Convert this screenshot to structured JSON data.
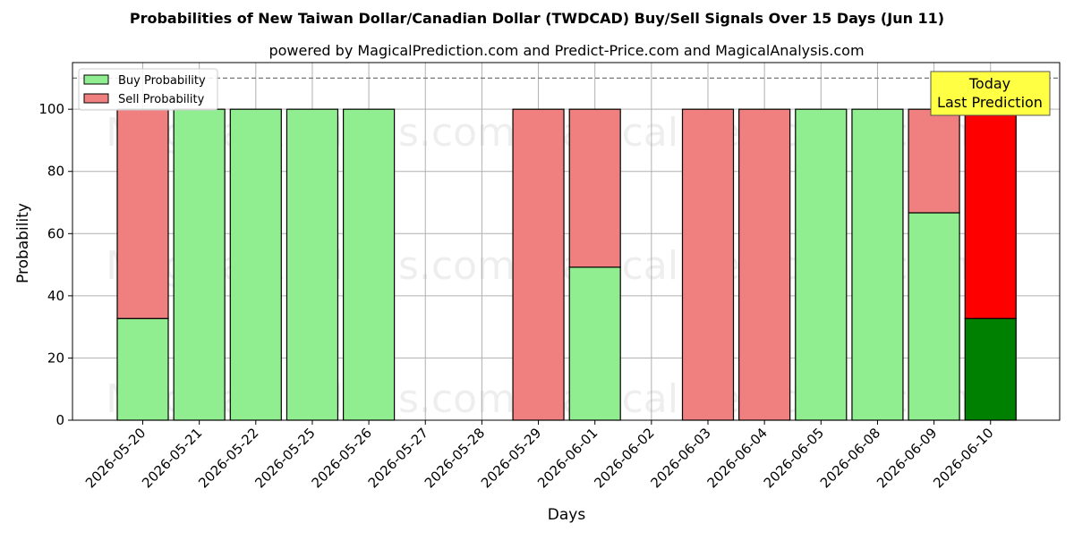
{
  "chart_data": {
    "type": "bar",
    "stacked": true,
    "title": "Probabilities of New Taiwan Dollar/Canadian Dollar (TWDCAD) Buy/Sell Signals Over 15 Days (Jun 11)",
    "subtitle": "powered by MagicalPrediction.com and Predict-Price.com and MagicalAnalysis.com",
    "xlabel": "Days",
    "ylabel": "Probability",
    "ylim": [
      0,
      115
    ],
    "yticks": [
      0,
      20,
      40,
      60,
      80,
      100
    ],
    "reference_line": 110,
    "grid": true,
    "legend_position": "top-left",
    "categories": [
      "2026-05-20",
      "2026-05-21",
      "2026-05-22",
      "2026-05-25",
      "2026-05-26",
      "2026-05-27",
      "2026-05-28",
      "2026-05-29",
      "2026-06-01",
      "2026-06-02",
      "2026-06-03",
      "2026-06-04",
      "2026-06-05",
      "2026-06-08",
      "2026-06-09",
      "2026-06-10"
    ],
    "series": [
      {
        "name": "Buy Probability",
        "color": "#90ee90",
        "values": [
          32.7,
          100,
          100,
          100,
          100,
          null,
          null,
          0,
          49.2,
          null,
          0,
          0,
          100,
          100,
          66.7,
          32.7
        ]
      },
      {
        "name": "Sell Probability",
        "color": "#f08080",
        "values": [
          67.3,
          0,
          0,
          0,
          0,
          null,
          null,
          100,
          50.8,
          null,
          100,
          100,
          0,
          0,
          33.3,
          67.3
        ]
      }
    ],
    "highlight": {
      "index": 15,
      "buy_color": "#008000",
      "sell_color": "#ff0000",
      "label_line1": "Today",
      "label_line2": "Last Prediction",
      "label_bg": "#ffff44"
    },
    "watermarks": [
      "MagicalAnalysis.com",
      "MagicalPrediction.com"
    ]
  }
}
